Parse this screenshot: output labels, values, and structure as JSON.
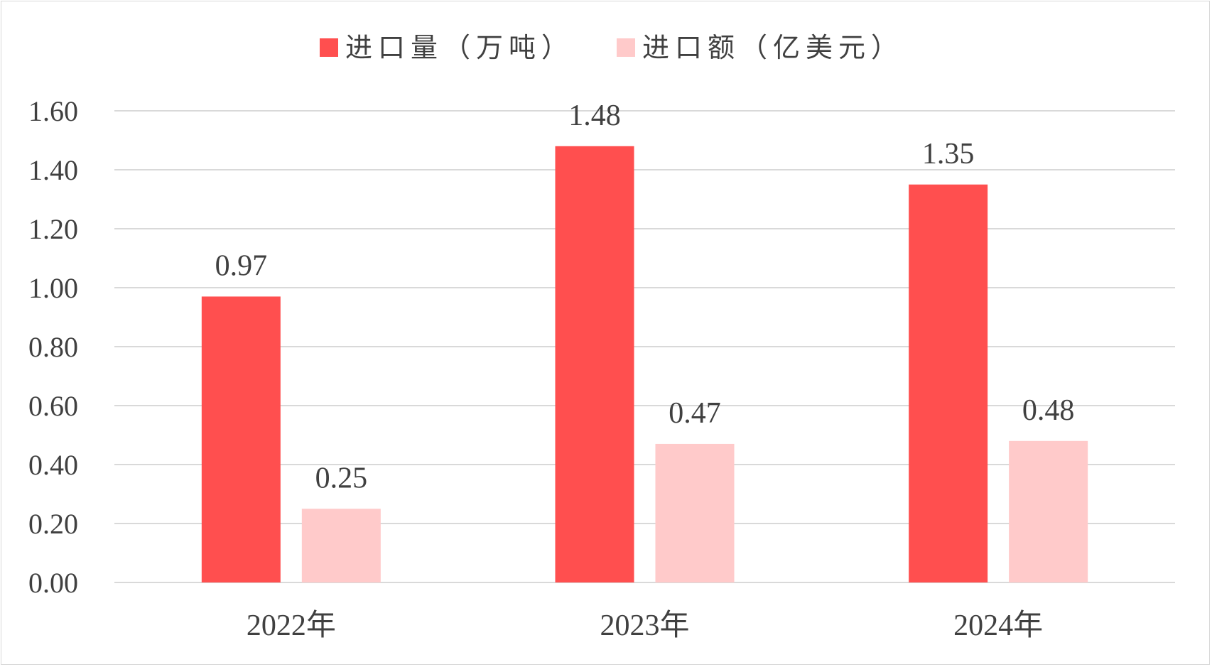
{
  "chart_data": {
    "type": "bar",
    "categories": [
      "2022年",
      "2023年",
      "2024年"
    ],
    "series": [
      {
        "name": "进口量（万吨）",
        "values": [
          0.97,
          1.48,
          1.35
        ],
        "labels": [
          "0.97",
          "1.48",
          "1.35"
        ],
        "color": "#ff4f4f"
      },
      {
        "name": "进口额（亿美元）",
        "values": [
          0.25,
          0.47,
          0.48
        ],
        "labels": [
          "0.25",
          "0.47",
          "0.48"
        ],
        "color": "#ffcaca"
      }
    ],
    "ylim": [
      0,
      1.6
    ],
    "yticks": [
      "0.00",
      "0.20",
      "0.40",
      "0.60",
      "0.80",
      "1.00",
      "1.20",
      "1.40",
      "1.60"
    ],
    "grid": true,
    "legend": "top-center"
  },
  "colors": {
    "gridline": "#d9d9d9",
    "text": "#404040"
  }
}
